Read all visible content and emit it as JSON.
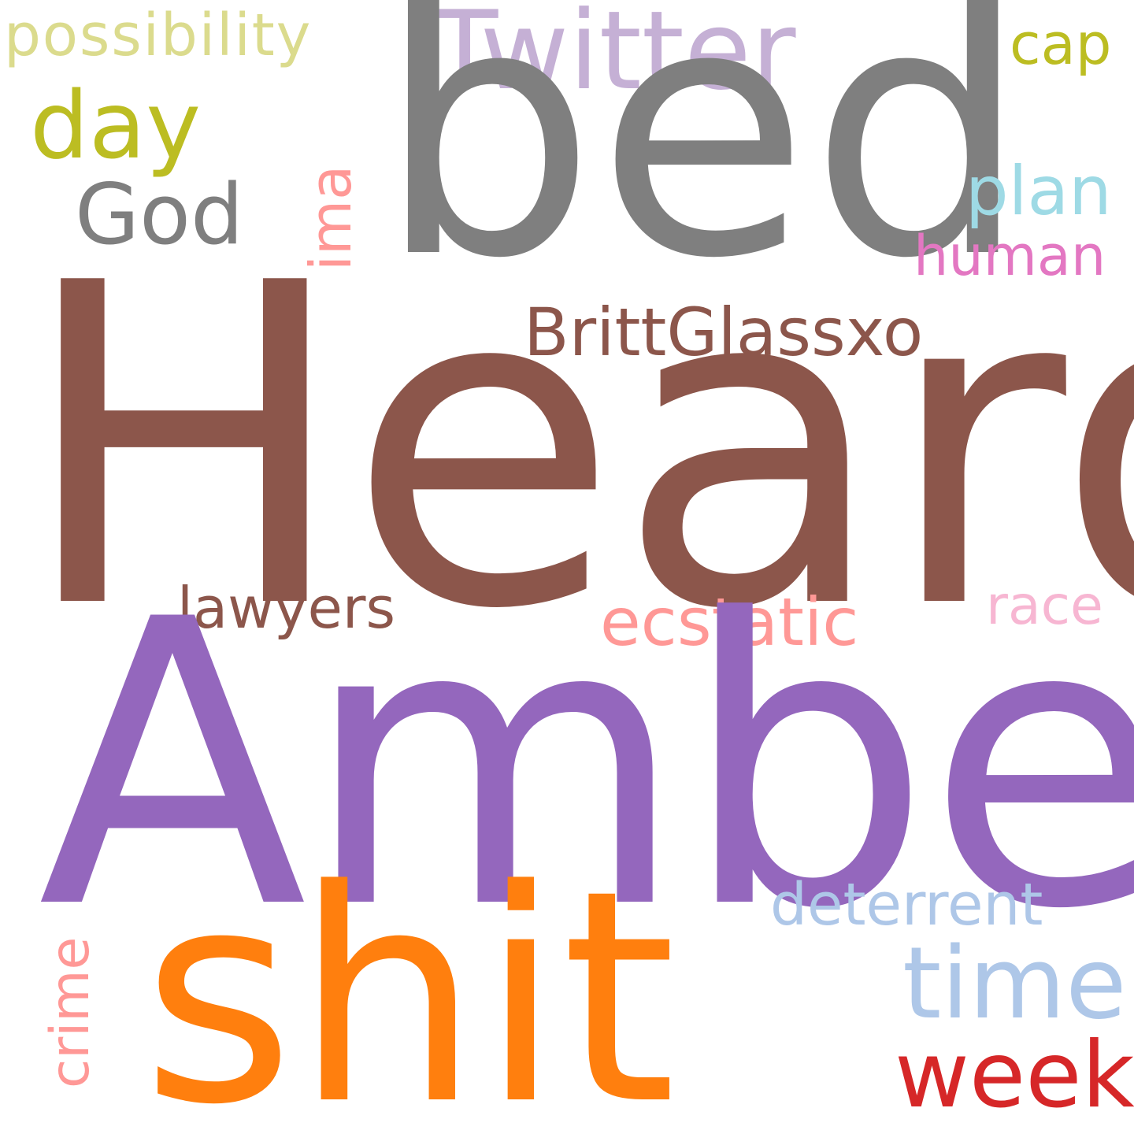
{
  "wordcloud": {
    "background": "#ffffff",
    "words": [
      {
        "id": "possibility",
        "text": "possibility",
        "color": "#dbdb8d",
        "orientation": "horizontal"
      },
      {
        "id": "twitter",
        "text": "Twitter",
        "color": "#c5b0d5",
        "orientation": "horizontal"
      },
      {
        "id": "bed",
        "text": "bed",
        "color": "#7f7f7f",
        "orientation": "horizontal"
      },
      {
        "id": "cap",
        "text": "cap",
        "color": "#bcbd22",
        "orientation": "horizontal"
      },
      {
        "id": "day",
        "text": "day",
        "color": "#bcbd22",
        "orientation": "horizontal"
      },
      {
        "id": "god",
        "text": "God",
        "color": "#7f7f7f",
        "orientation": "horizontal"
      },
      {
        "id": "ima",
        "text": "ima",
        "color": "#ff9896",
        "orientation": "vertical"
      },
      {
        "id": "plan",
        "text": "plan",
        "color": "#9edae5",
        "orientation": "horizontal"
      },
      {
        "id": "human",
        "text": "human",
        "color": "#e377c2",
        "orientation": "horizontal"
      },
      {
        "id": "britt",
        "text": "BrittGlassxo",
        "color": "#8c564b",
        "orientation": "horizontal"
      },
      {
        "id": "heard",
        "text": "Heard",
        "color": "#8c564b",
        "orientation": "horizontal"
      },
      {
        "id": "lawyers",
        "text": "lawyers",
        "color": "#8c564b",
        "orientation": "horizontal"
      },
      {
        "id": "ecstatic",
        "text": "ecstatic",
        "color": "#ff9896",
        "orientation": "horizontal"
      },
      {
        "id": "race",
        "text": "race",
        "color": "#f7b6d2",
        "orientation": "horizontal"
      },
      {
        "id": "amber",
        "text": "Amber",
        "color": "#9467bd",
        "orientation": "horizontal"
      },
      {
        "id": "deterrent",
        "text": "deterrent",
        "color": "#aec7e8",
        "orientation": "horizontal"
      },
      {
        "id": "crime",
        "text": "crime",
        "color": "#ff9896",
        "orientation": "vertical"
      },
      {
        "id": "shit",
        "text": "shit",
        "color": "#ff7f0e",
        "orientation": "horizontal"
      },
      {
        "id": "time",
        "text": "time",
        "color": "#aec7e8",
        "orientation": "horizontal"
      },
      {
        "id": "week",
        "text": "week",
        "color": "#d62728",
        "orientation": "horizontal"
      }
    ]
  }
}
